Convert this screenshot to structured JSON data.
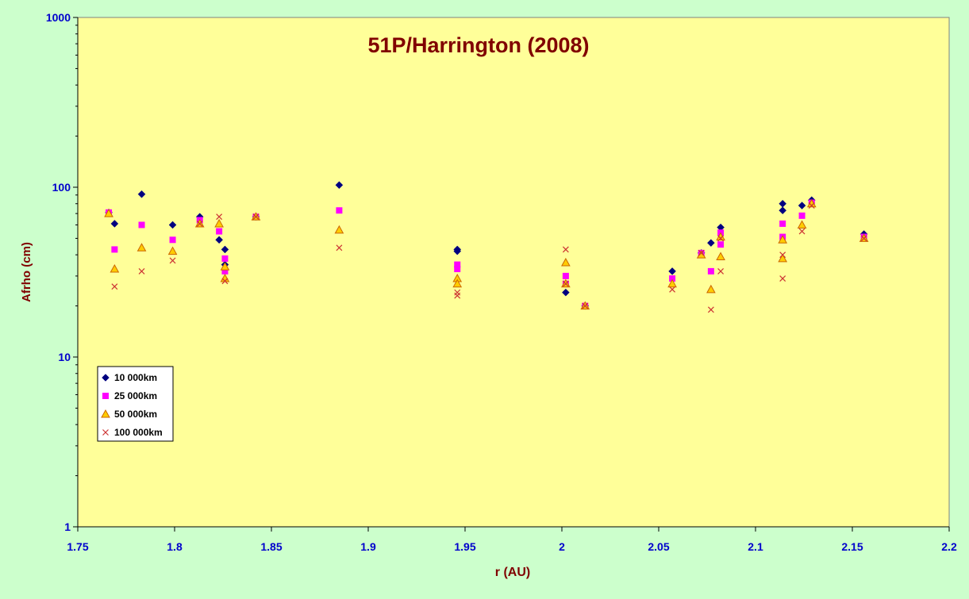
{
  "chart_data": {
    "type": "scatter",
    "title": "51P/Harrington (2008)",
    "xlabel": "r (AU)",
    "ylabel": "Afrho (cm)",
    "xlim": [
      1.75,
      2.2
    ],
    "ylim": [
      1,
      1000
    ],
    "yscale": "log",
    "x_ticks": [
      "1.75",
      "1.8",
      "1.85",
      "1.9",
      "1.95",
      "2",
      "2.05",
      "2.1",
      "2.15",
      "2.2"
    ],
    "y_ticks": [
      "1",
      "10",
      "100",
      "1000"
    ],
    "grid": false,
    "legend_position": "bottom-left",
    "colors": {
      "background": "#ccffcc",
      "plot_area": "#ffff99",
      "title": "#800000",
      "tick_labels": "#0000cc"
    },
    "series": [
      {
        "name": "10 000km",
        "marker": "diamond",
        "color": "#000080",
        "points": [
          [
            1.766,
            71
          ],
          [
            1.769,
            61
          ],
          [
            1.783,
            91
          ],
          [
            1.799,
            60
          ],
          [
            1.813,
            67
          ],
          [
            1.823,
            49
          ],
          [
            1.826,
            35
          ],
          [
            1.826,
            43
          ],
          [
            1.842,
            67
          ],
          [
            1.885,
            103
          ],
          [
            1.946,
            43
          ],
          [
            1.946,
            42
          ],
          [
            2.002,
            24
          ],
          [
            2.012,
            20
          ],
          [
            2.057,
            32
          ],
          [
            2.072,
            41
          ],
          [
            2.077,
            47
          ],
          [
            2.082,
            58
          ],
          [
            2.114,
            80
          ],
          [
            2.114,
            73
          ],
          [
            2.124,
            78
          ],
          [
            2.129,
            84
          ],
          [
            2.156,
            53
          ]
        ]
      },
      {
        "name": "25 000km",
        "marker": "square",
        "color": "#ff00ff",
        "points": [
          [
            1.766,
            71
          ],
          [
            1.769,
            43
          ],
          [
            1.783,
            60
          ],
          [
            1.799,
            49
          ],
          [
            1.813,
            64
          ],
          [
            1.823,
            55
          ],
          [
            1.826,
            38
          ],
          [
            1.826,
            32
          ],
          [
            1.842,
            67
          ],
          [
            1.885,
            73
          ],
          [
            1.946,
            35
          ],
          [
            1.946,
            33
          ],
          [
            2.002,
            30
          ],
          [
            2.002,
            27
          ],
          [
            2.012,
            20
          ],
          [
            2.057,
            29
          ],
          [
            2.072,
            41
          ],
          [
            2.077,
            32
          ],
          [
            2.082,
            54
          ],
          [
            2.082,
            46
          ],
          [
            2.114,
            61
          ],
          [
            2.114,
            51
          ],
          [
            2.124,
            68
          ],
          [
            2.129,
            81
          ],
          [
            2.156,
            51
          ]
        ]
      },
      {
        "name": "50 000km",
        "marker": "triangle",
        "color": "#cc6600",
        "points": [
          [
            1.766,
            70
          ],
          [
            1.769,
            33
          ],
          [
            1.783,
            44
          ],
          [
            1.799,
            42
          ],
          [
            1.813,
            61
          ],
          [
            1.823,
            61
          ],
          [
            1.826,
            29
          ],
          [
            1.826,
            34
          ],
          [
            1.842,
            67
          ],
          [
            1.885,
            56
          ],
          [
            1.946,
            29
          ],
          [
            1.946,
            27
          ],
          [
            2.002,
            36
          ],
          [
            2.002,
            27
          ],
          [
            2.012,
            20
          ],
          [
            2.057,
            27
          ],
          [
            2.072,
            40
          ],
          [
            2.077,
            25
          ],
          [
            2.082,
            51
          ],
          [
            2.082,
            39
          ],
          [
            2.114,
            49
          ],
          [
            2.114,
            38
          ],
          [
            2.124,
            60
          ],
          [
            2.129,
            80
          ],
          [
            2.156,
            50
          ]
        ]
      },
      {
        "name": "100 000km",
        "marker": "cross",
        "color": "#cc3333",
        "points": [
          [
            1.769,
            26
          ],
          [
            1.783,
            32
          ],
          [
            1.799,
            37
          ],
          [
            1.813,
            61
          ],
          [
            1.823,
            67
          ],
          [
            1.826,
            28
          ],
          [
            1.842,
            67
          ],
          [
            1.885,
            44
          ],
          [
            1.946,
            24
          ],
          [
            1.946,
            23
          ],
          [
            2.002,
            43
          ],
          [
            2.002,
            27
          ],
          [
            2.012,
            20
          ],
          [
            2.057,
            25
          ],
          [
            2.072,
            41
          ],
          [
            2.077,
            19
          ],
          [
            2.082,
            32
          ],
          [
            2.082,
            50
          ],
          [
            2.114,
            29
          ],
          [
            2.114,
            40
          ],
          [
            2.124,
            55
          ],
          [
            2.129,
            78
          ],
          [
            2.156,
            50
          ]
        ]
      }
    ]
  }
}
